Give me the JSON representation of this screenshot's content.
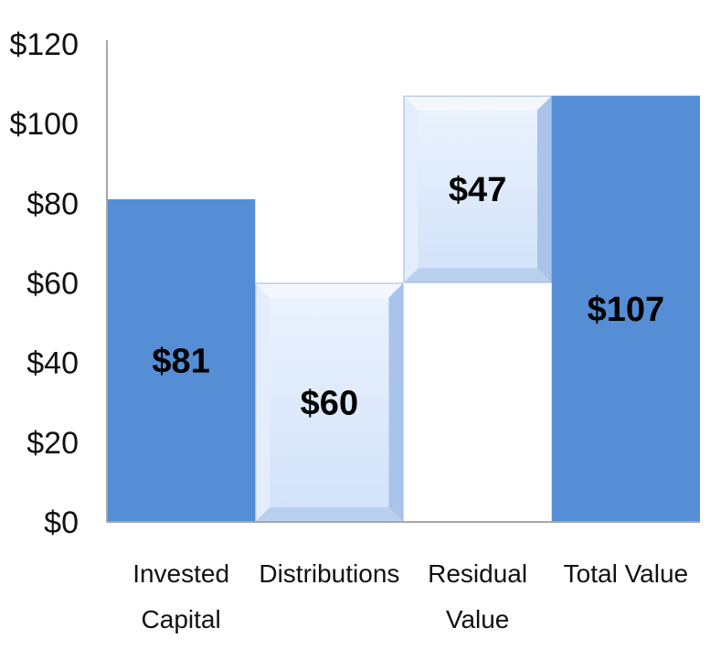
{
  "chart_data": {
    "type": "bar",
    "subtype": "waterfall",
    "title": "",
    "xlabel": "",
    "ylabel": "",
    "ylim": [
      0,
      120
    ],
    "yticks": [
      0,
      20,
      40,
      60,
      80,
      100,
      120
    ],
    "ytick_labels": [
      "$0",
      "$20",
      "$40",
      "$60",
      "$80",
      "$100",
      "$120"
    ],
    "grid": false,
    "legend": "none",
    "categories": [
      {
        "lines": [
          "Invested",
          "Capital"
        ]
      },
      {
        "lines": [
          "Distributions"
        ]
      },
      {
        "lines": [
          "Residual",
          "Value"
        ]
      },
      {
        "lines": [
          "Total Value"
        ]
      }
    ],
    "bars": [
      {
        "base": 0,
        "value": 81,
        "label": "$81",
        "style": "solid"
      },
      {
        "base": 0,
        "value": 60,
        "label": "$60",
        "style": "bevel"
      },
      {
        "base": 60,
        "value": 47,
        "label": "$47",
        "style": "bevel"
      },
      {
        "base": 0,
        "value": 107,
        "label": "$107",
        "style": "solid"
      }
    ],
    "colors": {
      "solid": "#558ed5",
      "bevel_face": "#dbe8fb",
      "bevel_edge": "#a9c4ea",
      "axis": "#a6a6a6"
    }
  }
}
